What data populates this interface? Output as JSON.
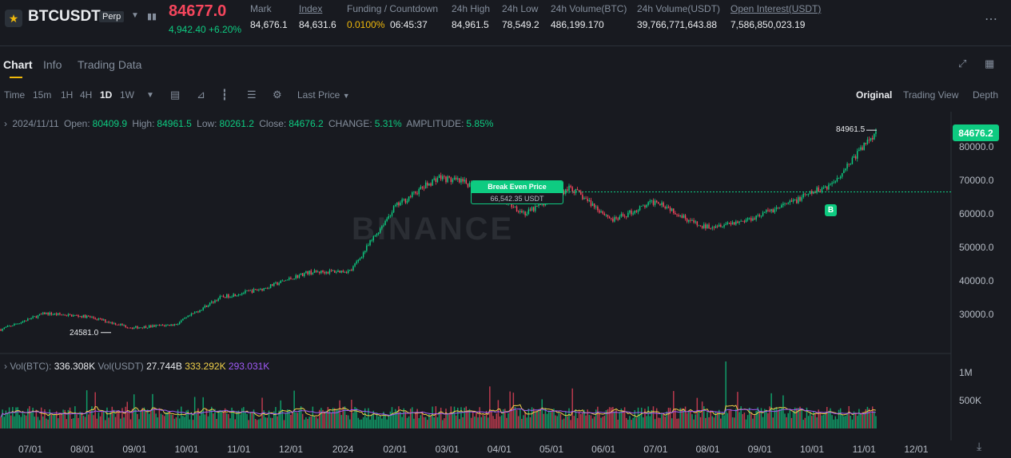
{
  "ticker": {
    "symbol": "BTCUSDT",
    "contract_badge": "Perp",
    "last_price": "84677.0",
    "change": "4,942.40 +6.20%",
    "stats": [
      {
        "label": "Mark",
        "value": "84,676.1",
        "underline": false
      },
      {
        "label": "Index",
        "value": "84,631.6",
        "underline": true
      },
      {
        "label": "Funding / Countdown",
        "value": "0.0100%",
        "value2": "06:45:37",
        "underline": false
      },
      {
        "label": "24h High",
        "value": "84,961.5",
        "underline": false
      },
      {
        "label": "24h Low",
        "value": "78,549.2",
        "underline": false
      },
      {
        "label": "24h Volume(BTC)",
        "value": "486,199.170",
        "underline": false
      },
      {
        "label": "24h Volume(USDT)",
        "value": "39,766,771,643.88",
        "underline": false
      },
      {
        "label": "Open Interest(USDT)",
        "value": "7,586,850,023.19",
        "underline": true
      }
    ]
  },
  "tabs": [
    "Chart",
    "Info",
    "Trading Data"
  ],
  "toolbar": {
    "intervals": [
      "Time",
      "15m",
      "1H",
      "4H",
      "1D",
      "1W"
    ],
    "active_interval": "1D",
    "price_type": "Last Price",
    "views": [
      "Original",
      "Trading View",
      "Depth"
    ],
    "active_view": "Original"
  },
  "ohlc": {
    "date": "2024/11/11",
    "open_label": "Open:",
    "open": "80409.9",
    "high_label": "High:",
    "high": "84961.5",
    "low_label": "Low:",
    "low": "80261.2",
    "close_label": "Close:",
    "close": "84676.2",
    "change_label": "CHANGE:",
    "change": "5.31%",
    "amplitude_label": "AMPLITUDE:",
    "amplitude": "5.85%"
  },
  "volume_header": {
    "vol_btc_label": "Vol(BTC):",
    "vol_btc": "336.308K",
    "vol_usdt_label": "Vol(USDT)",
    "vol_usdt": "27.744B",
    "ma1": "333.292K",
    "ma2": "293.031K"
  },
  "annotations": {
    "high_marker": "84961.5",
    "low_marker": "24581.0",
    "break_even_title": "Break Even Price",
    "break_even_value": "66,542.35 USDT",
    "buy_marker": "B",
    "last_price_tag": "84676.2",
    "watermark": "BINANCE"
  },
  "colors": {
    "up": "#0ecb81",
    "down": "#f6465d",
    "accent": "#f0b90b",
    "ma1": "#f0d04a",
    "ma2": "#a05af7"
  },
  "chart_data": {
    "type": "candlestick",
    "x_ticks": [
      "07/01",
      "08/01",
      "09/01",
      "10/01",
      "11/01",
      "12/01",
      "2024",
      "02/01",
      "03/01",
      "04/01",
      "05/01",
      "06/01",
      "07/01",
      "08/01",
      "09/01",
      "10/01",
      "11/01",
      "12/01"
    ],
    "y_ticks": [
      30000,
      40000,
      50000,
      60000,
      70000,
      80000
    ],
    "y_tick_labels": [
      "30000.0",
      "40000.0",
      "50000.0",
      "60000.0",
      "70000.0",
      "80000.0"
    ],
    "volume_ticks": [
      "500K",
      "1M"
    ],
    "volume_tick_values": [
      500000,
      1000000
    ],
    "price_path": [
      {
        "month": "2023-06",
        "price": 25500
      },
      {
        "month": "2023-07",
        "price": 30300
      },
      {
        "month": "2023-08",
        "price": 29300
      },
      {
        "month": "2023-09",
        "price": 26000
      },
      {
        "month": "2023-10",
        "price": 27000
      },
      {
        "month": "2023-11",
        "price": 35000
      },
      {
        "month": "2023-12",
        "price": 37700
      },
      {
        "month": "2024-01",
        "price": 42500
      },
      {
        "month": "2024-02",
        "price": 43000
      },
      {
        "month": "2024-03",
        "price": 62000
      },
      {
        "month": "2024-03b",
        "price": 71000
      },
      {
        "month": "2024-04",
        "price": 68000
      },
      {
        "month": "2024-05",
        "price": 60000
      },
      {
        "month": "2024-06",
        "price": 68000
      },
      {
        "month": "2024-07",
        "price": 58000
      },
      {
        "month": "2024-08",
        "price": 64000
      },
      {
        "month": "2024-08b",
        "price": 56000
      },
      {
        "month": "2024-09",
        "price": 58000
      },
      {
        "month": "2024-10",
        "price": 63000
      },
      {
        "month": "2024-11",
        "price": 69000
      },
      {
        "month": "2024-11-11",
        "price": 84676
      }
    ],
    "break_even_price": 66542.35,
    "high": 84961.5,
    "low": 24581.0
  }
}
